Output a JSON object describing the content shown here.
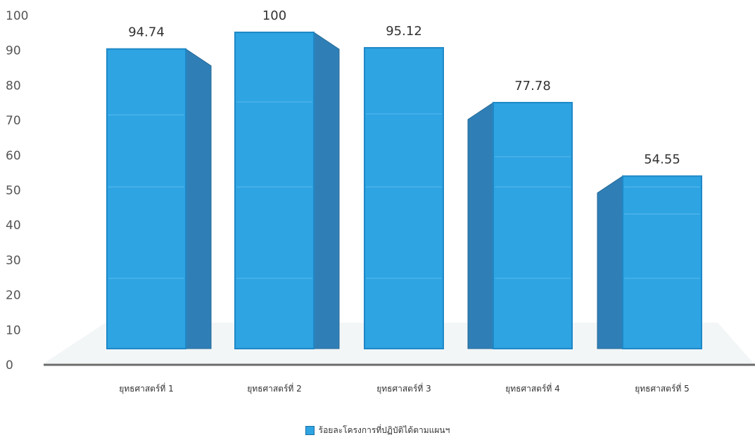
{
  "chart_data": {
    "type": "bar",
    "title": "",
    "xlabel": "",
    "ylabel": "",
    "categories": [
      "ยุทธศาสตร์ที่ 1",
      "ยุทธศาสตร์ที่ 2",
      "ยุทธศาสตร์ที่ 3",
      "ยุทธศาสตร์ที่ 4",
      "ยุทธศาสตร์ที่ 5"
    ],
    "series": [
      {
        "name": "ร้อยละโครงการที่ปฏิบัติได้ตามแผนฯ",
        "values": [
          94.74,
          100,
          95.12,
          77.78,
          54.55
        ],
        "labels": [
          "94.74",
          "100",
          "95.12",
          "77.78",
          "54.55"
        ],
        "color": "#2ea4e3"
      }
    ],
    "yticks": [
      "0",
      "10",
      "20",
      "30",
      "40",
      "50",
      "60",
      "70",
      "80",
      "90",
      "100"
    ],
    "ylim": [
      0,
      100
    ],
    "grid": false,
    "legend_position": "bottom",
    "style": "3d-column"
  }
}
